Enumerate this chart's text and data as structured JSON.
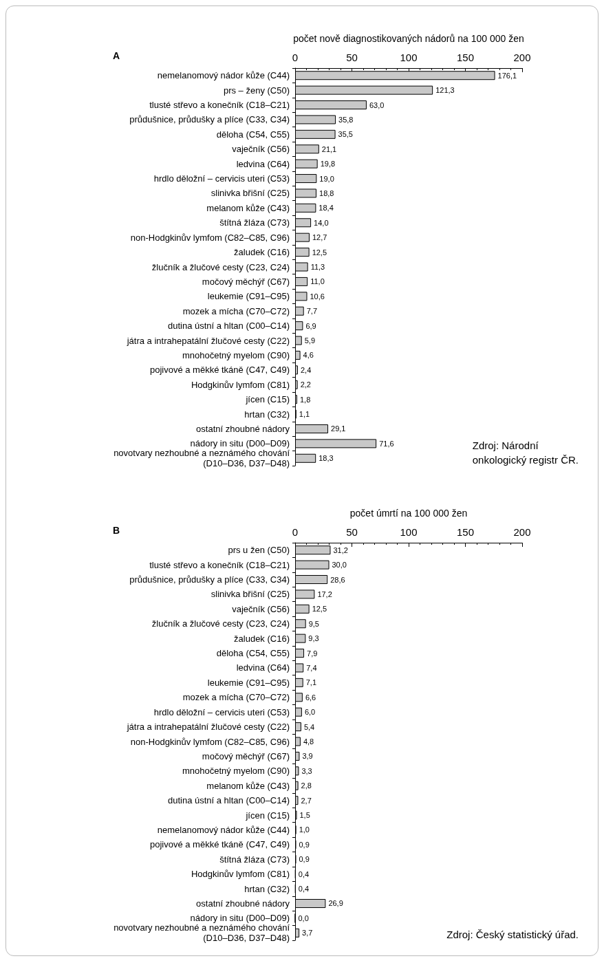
{
  "chart_data": [
    {
      "type": "bar",
      "orientation": "horizontal",
      "title": "A",
      "xlabel": "počet nově diagnostikovaných nádorů na 100 000 žen",
      "xlim": [
        0,
        200
      ],
      "xticks": [
        0,
        50,
        100,
        150,
        200
      ],
      "grid": false,
      "color": "#c8c8c8",
      "categories": [
        "nemelanomový nádor kůže (C44)",
        "prs – ženy (C50)",
        "tlusté střevo a konečník (C18–C21)",
        "průdušnice, průdušky a plíce (C33, C34)",
        "děloha (C54, C55)",
        "vaječník (C56)",
        "ledvina (C64)",
        "hrdlo děložní – cervicis uteri (C53)",
        "slinivka břišní (C25)",
        "melanom kůže (C43)",
        "štítná žláza (C73)",
        "non-Hodgkinův lymfom (C82–C85, C96)",
        "žaludek (C16)",
        "žlučník a žlučové cesty (C23, C24)",
        "močový měchýř (C67)",
        "leukemie (C91–C95)",
        "mozek a mícha (C70–C72)",
        "dutina ústní a hltan (C00–C14)",
        "játra a intrahepatální žlučové cesty (C22)",
        "mnohočetný myelom (C90)",
        "pojivové a měkké tkáně (C47, C49)",
        "Hodgkinův lymfom (C81)",
        "jícen (C15)",
        "hrtan (C32)",
        "ostatní zhoubné nádory",
        "nádory in situ (D00–D09)",
        "novotvary nezhoubné a neznámého chování\n(D10–D36, D37–D48)"
      ],
      "values": [
        176.1,
        121.3,
        63.0,
        35.8,
        35.5,
        21.1,
        19.8,
        19.0,
        18.8,
        18.4,
        14.0,
        12.7,
        12.5,
        11.3,
        11.0,
        10.6,
        7.7,
        6.9,
        5.9,
        4.6,
        2.4,
        2.2,
        1.8,
        1.1,
        29.1,
        71.6,
        18.3
      ],
      "value_labels": [
        "176,1",
        "121,3",
        "63,0",
        "35,8",
        "35,5",
        "21,1",
        "19,8",
        "19,0",
        "18,8",
        "18,4",
        "14,0",
        "12,7",
        "12,5",
        "11,3",
        "11,0",
        "10,6",
        "7,7",
        "6,9",
        "5,9",
        "4,6",
        "2,4",
        "2,2",
        "1,8",
        "1,1",
        "29,1",
        "71,6",
        "18,3"
      ],
      "annotations": [
        "Zdroj: Národní\nonkologický registr ČR."
      ]
    },
    {
      "type": "bar",
      "orientation": "horizontal",
      "title": "B",
      "xlabel": "počet úmrtí na 100 000 žen",
      "xlim": [
        0,
        200
      ],
      "xticks": [
        0,
        50,
        100,
        150,
        200
      ],
      "grid": false,
      "color": "#c8c8c8",
      "categories": [
        "prs u žen (C50)",
        "tlusté střevo a konečník (C18–C21)",
        "průdušnice, průdušky a plíce (C33, C34)",
        "slinivka břišní (C25)",
        "vaječník (C56)",
        "žlučník a žlučové cesty (C23, C24)",
        "žaludek (C16)",
        "děloha (C54, C55)",
        "ledvina (C64)",
        "leukemie (C91–C95)",
        "mozek a mícha (C70–C72)",
        "hrdlo děložní – cervicis uteri (C53)",
        "játra a intrahepatální žlučové cesty (C22)",
        "non-Hodgkinův lymfom (C82–C85, C96)",
        "močový měchýř (C67)",
        "mnohočetný myelom (C90)",
        "melanom kůže (C43)",
        "dutina ústní a hltan (C00–C14)",
        "jícen (C15)",
        "nemelanomový nádor kůže (C44)",
        "pojivové a měkké tkáně (C47, C49)",
        "štítná žláza (C73)",
        "Hodgkinův lymfom (C81)",
        "hrtan (C32)",
        "ostatní zhoubné nádory",
        "nádory in situ (D00–D09)",
        "novotvary nezhoubné a neznámého chování\n(D10–D36, D37–D48)"
      ],
      "values": [
        31.2,
        30.0,
        28.6,
        17.2,
        12.5,
        9.5,
        9.3,
        7.9,
        7.4,
        7.1,
        6.6,
        6.0,
        5.4,
        4.8,
        3.9,
        3.3,
        2.8,
        2.7,
        1.5,
        1.0,
        0.9,
        0.9,
        0.4,
        0.4,
        26.9,
        0.0,
        3.7
      ],
      "value_labels": [
        "31,2",
        "30,0",
        "28,6",
        "17,2",
        "12,5",
        "9,5",
        "9,3",
        "7,9",
        "7,4",
        "7,1",
        "6,6",
        "6,0",
        "5,4",
        "4,8",
        "3,9",
        "3,3",
        "2,8",
        "2,7",
        "1,5",
        "1,0",
        "0,9",
        "0,9",
        "0,4",
        "0,4",
        "26,9",
        "0,0",
        "3,7"
      ],
      "annotations": [
        "Zdroj: Český statistický úřad."
      ]
    }
  ]
}
